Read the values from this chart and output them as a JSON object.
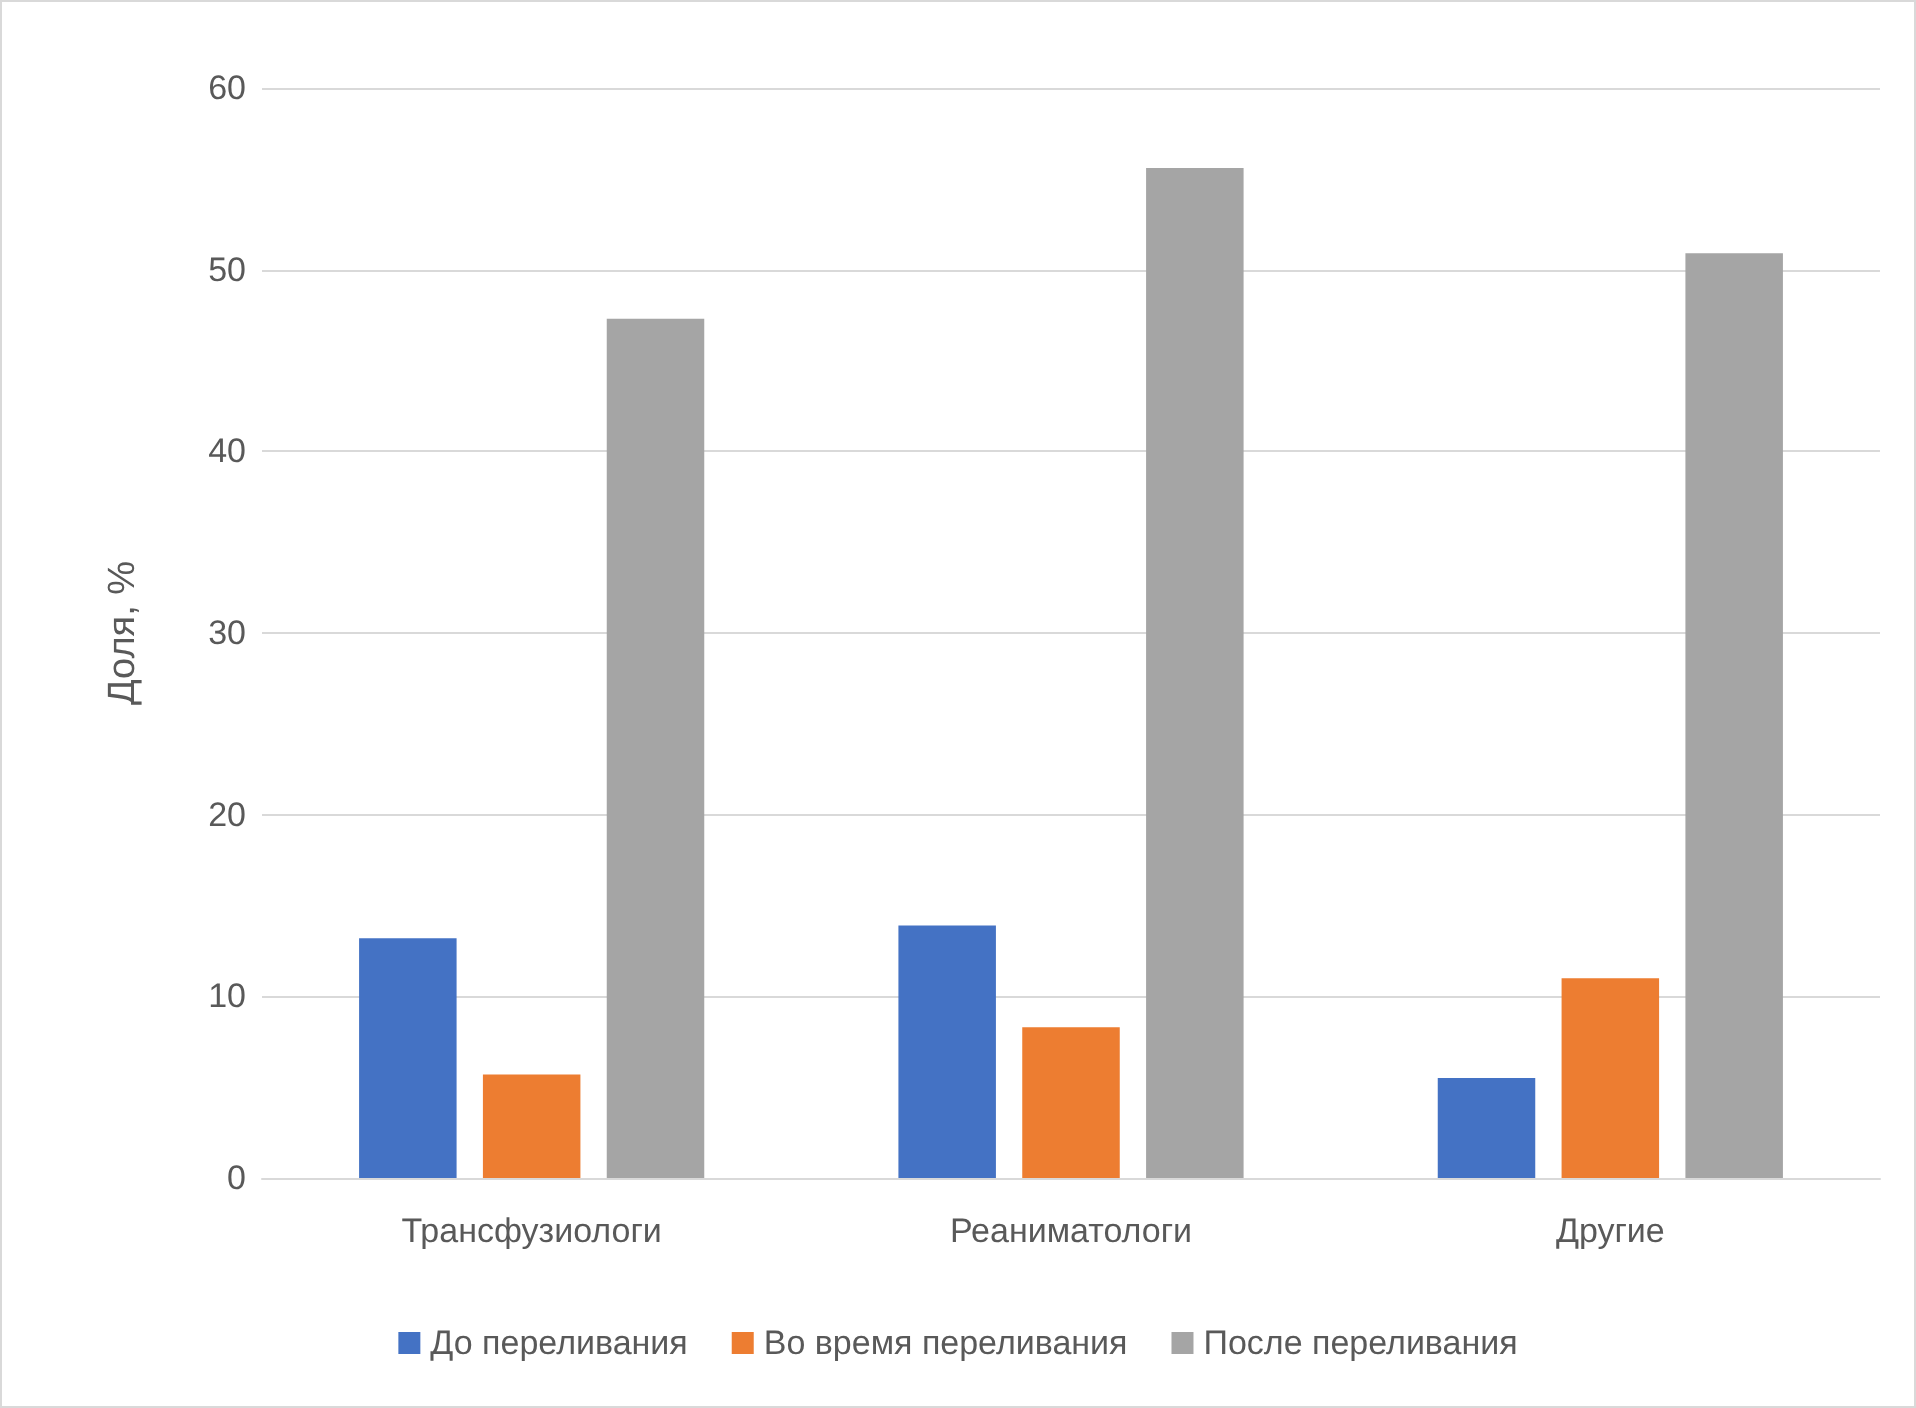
{
  "chart_data": {
    "type": "bar",
    "ylabel": "Доля, %",
    "categories": [
      "Трансфузиологи",
      "Реаниматологи",
      "Другие"
    ],
    "series": [
      {
        "name": "До переливания",
        "color": "#4472c4",
        "values": [
          13.2,
          13.9,
          5.5
        ]
      },
      {
        "name": "Во время переливания",
        "color": "#ed7d31",
        "values": [
          5.7,
          8.3,
          11.0
        ]
      },
      {
        "name": "После переливания",
        "color": "#a5a5a5",
        "values": [
          47.3,
          55.6,
          50.9
        ]
      }
    ],
    "ylim": [
      0,
      60
    ],
    "yticks": [
      0,
      10,
      20,
      30,
      40,
      50,
      60
    ],
    "grid": "y",
    "legend": "bottom"
  }
}
